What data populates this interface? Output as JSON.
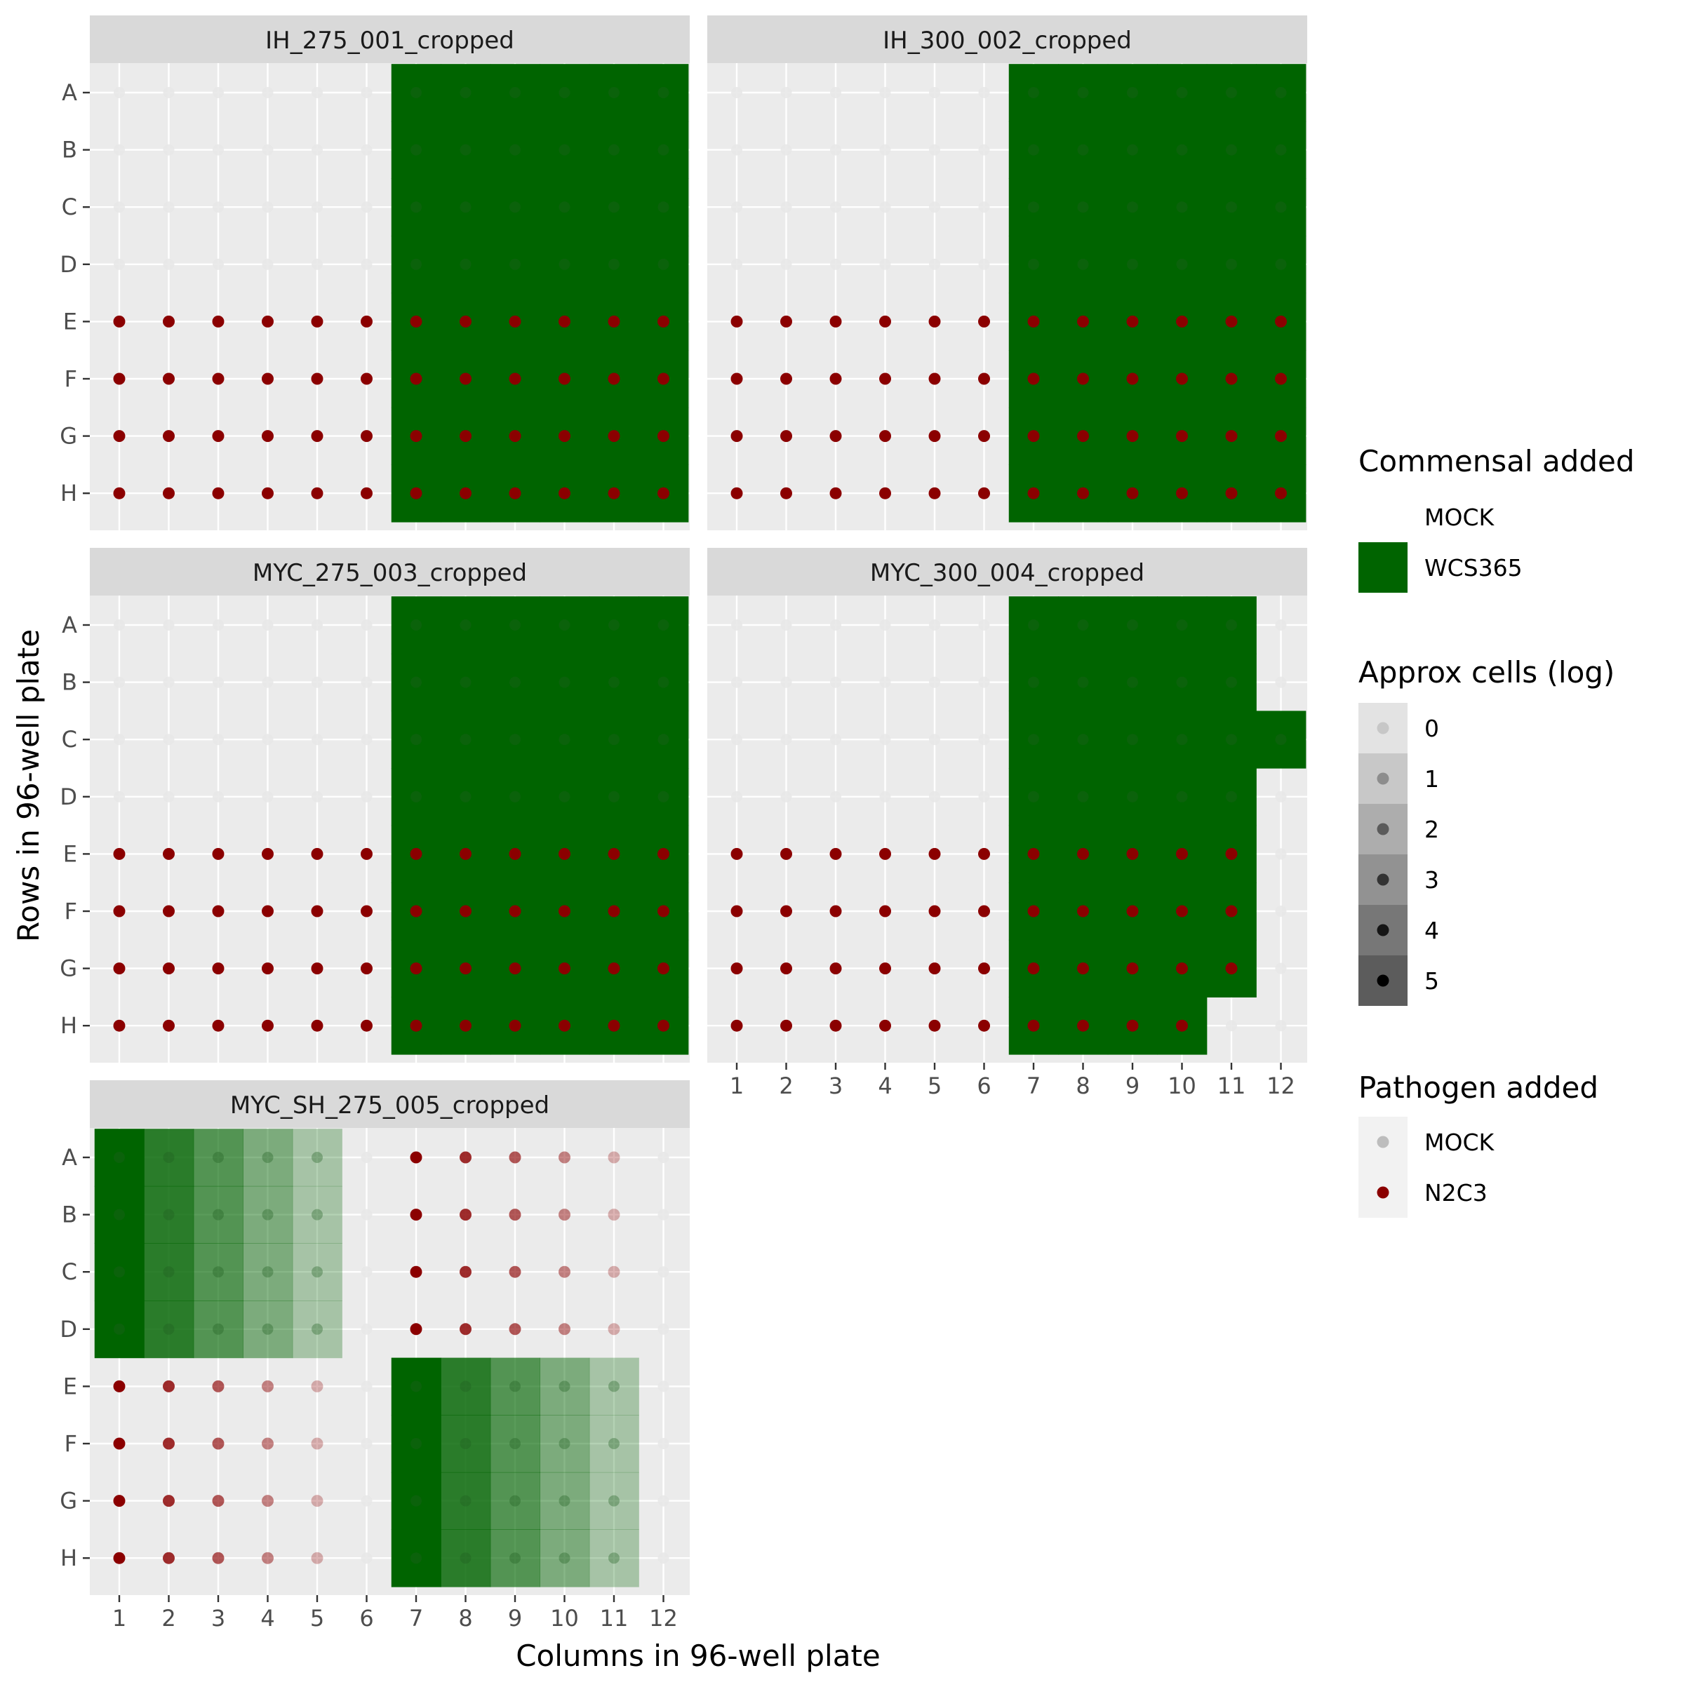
{
  "chart_data": {
    "type": "scatter",
    "xlabel": "Columns in 96-well plate",
    "ylabel": "Rows in 96-well plate",
    "x_ticks": [
      "1",
      "2",
      "3",
      "4",
      "5",
      "6",
      "7",
      "8",
      "9",
      "10",
      "11",
      "12"
    ],
    "y_ticks": [
      "A",
      "B",
      "C",
      "D",
      "E",
      "F",
      "G",
      "H"
    ],
    "colors": {
      "panel_bg": "#ebebeb",
      "grid": "#ffffff",
      "strip_bg": "#d9d9d9",
      "wcs365": "#006400",
      "n2c3": "#8b0000",
      "mock_point": "#bdbdbd"
    },
    "facets": [
      {
        "title": "IH_275_001_cropped",
        "commensal": [
          {
            "label": "WCS365",
            "rows": [
              "A",
              "B",
              "C",
              "D",
              "E",
              "F",
              "G",
              "H"
            ],
            "cols": [
              7,
              8,
              9,
              10,
              11,
              12
            ],
            "log_cells": 5
          }
        ],
        "pathogen": [
          {
            "label": "N2C3",
            "rows": [
              "E",
              "F",
              "G",
              "H"
            ],
            "cols": [
              1,
              2,
              3,
              4,
              5,
              6,
              7,
              8,
              9,
              10,
              11,
              12
            ],
            "log_cells": 5
          }
        ]
      },
      {
        "title": "IH_300_002_cropped",
        "commensal": [
          {
            "label": "WCS365",
            "rows": [
              "A",
              "B",
              "C",
              "D",
              "E",
              "F",
              "G",
              "H"
            ],
            "cols": [
              7,
              8,
              9,
              10,
              11,
              12
            ],
            "log_cells": 5
          }
        ],
        "pathogen": [
          {
            "label": "N2C3",
            "rows": [
              "E",
              "F",
              "G",
              "H"
            ],
            "cols": [
              1,
              2,
              3,
              4,
              5,
              6,
              7,
              8,
              9,
              10,
              11,
              12
            ],
            "log_cells": 5
          }
        ]
      },
      {
        "title": "MYC_275_003_cropped",
        "commensal": [
          {
            "label": "WCS365",
            "rows": [
              "A",
              "B",
              "C",
              "D",
              "E",
              "F",
              "G",
              "H"
            ],
            "cols": [
              7,
              8,
              9,
              10,
              11,
              12
            ],
            "log_cells": 5
          }
        ],
        "pathogen": [
          {
            "label": "N2C3",
            "rows": [
              "E",
              "F",
              "G",
              "H"
            ],
            "cols": [
              1,
              2,
              3,
              4,
              5,
              6,
              7,
              8,
              9,
              10,
              11,
              12
            ],
            "log_cells": 5
          }
        ]
      },
      {
        "title": "MYC_300_004_cropped",
        "commensal": [
          {
            "label": "WCS365",
            "rows": [
              "A",
              "B",
              "D",
              "E",
              "F",
              "G"
            ],
            "cols": [
              7,
              8,
              9,
              10,
              11
            ],
            "log_cells": 5
          },
          {
            "label": "WCS365",
            "rows": [
              "C"
            ],
            "cols": [
              7,
              8,
              9,
              10,
              11,
              12
            ],
            "log_cells": 5
          },
          {
            "label": "WCS365",
            "rows": [
              "H"
            ],
            "cols": [
              7,
              8,
              9,
              10
            ],
            "log_cells": 5
          }
        ],
        "pathogen": [
          {
            "label": "N2C3",
            "rows": [
              "E",
              "F",
              "G"
            ],
            "cols": [
              1,
              2,
              3,
              4,
              5,
              6,
              7,
              8,
              9,
              10,
              11
            ],
            "log_cells": 5
          },
          {
            "label": "N2C3",
            "rows": [
              "H"
            ],
            "cols": [
              1,
              2,
              3,
              4,
              5,
              6,
              7,
              8,
              9,
              10
            ],
            "log_cells": 5
          }
        ]
      },
      {
        "title": "MYC_SH_275_005_cropped",
        "commensal": [
          {
            "label": "WCS365",
            "rows": [
              "A",
              "B",
              "C",
              "D"
            ],
            "cols": [
              1
            ],
            "log_cells": 5
          },
          {
            "label": "WCS365",
            "rows": [
              "A",
              "B",
              "C",
              "D"
            ],
            "cols": [
              2
            ],
            "log_cells": 4
          },
          {
            "label": "WCS365",
            "rows": [
              "A",
              "B",
              "C",
              "D"
            ],
            "cols": [
              3
            ],
            "log_cells": 3
          },
          {
            "label": "WCS365",
            "rows": [
              "A",
              "B",
              "C",
              "D"
            ],
            "cols": [
              4
            ],
            "log_cells": 2
          },
          {
            "label": "WCS365",
            "rows": [
              "A",
              "B",
              "C",
              "D"
            ],
            "cols": [
              5
            ],
            "log_cells": 1
          },
          {
            "label": "WCS365",
            "rows": [
              "E",
              "F",
              "G",
              "H"
            ],
            "cols": [
              7
            ],
            "log_cells": 5
          },
          {
            "label": "WCS365",
            "rows": [
              "E",
              "F",
              "G",
              "H"
            ],
            "cols": [
              8
            ],
            "log_cells": 4
          },
          {
            "label": "WCS365",
            "rows": [
              "E",
              "F",
              "G",
              "H"
            ],
            "cols": [
              9
            ],
            "log_cells": 3
          },
          {
            "label": "WCS365",
            "rows": [
              "E",
              "F",
              "G",
              "H"
            ],
            "cols": [
              10
            ],
            "log_cells": 2
          },
          {
            "label": "WCS365",
            "rows": [
              "E",
              "F",
              "G",
              "H"
            ],
            "cols": [
              11
            ],
            "log_cells": 1
          }
        ],
        "pathogen": [
          {
            "label": "N2C3",
            "rows": [
              "A",
              "B",
              "C",
              "D"
            ],
            "cols": [
              7
            ],
            "log_cells": 5
          },
          {
            "label": "N2C3",
            "rows": [
              "A",
              "B",
              "C",
              "D"
            ],
            "cols": [
              8
            ],
            "log_cells": 4
          },
          {
            "label": "N2C3",
            "rows": [
              "A",
              "B",
              "C",
              "D"
            ],
            "cols": [
              9
            ],
            "log_cells": 3
          },
          {
            "label": "N2C3",
            "rows": [
              "A",
              "B",
              "C",
              "D"
            ],
            "cols": [
              10
            ],
            "log_cells": 2
          },
          {
            "label": "N2C3",
            "rows": [
              "A",
              "B",
              "C",
              "D"
            ],
            "cols": [
              11
            ],
            "log_cells": 1
          },
          {
            "label": "N2C3",
            "rows": [
              "E",
              "F",
              "G",
              "H"
            ],
            "cols": [
              1
            ],
            "log_cells": 5
          },
          {
            "label": "N2C3",
            "rows": [
              "E",
              "F",
              "G",
              "H"
            ],
            "cols": [
              2
            ],
            "log_cells": 4
          },
          {
            "label": "N2C3",
            "rows": [
              "E",
              "F",
              "G",
              "H"
            ],
            "cols": [
              3
            ],
            "log_cells": 3
          },
          {
            "label": "N2C3",
            "rows": [
              "E",
              "F",
              "G",
              "H"
            ],
            "cols": [
              4
            ],
            "log_cells": 2
          },
          {
            "label": "N2C3",
            "rows": [
              "E",
              "F",
              "G",
              "H"
            ],
            "cols": [
              5
            ],
            "log_cells": 1
          }
        ]
      }
    ],
    "legends": {
      "commensal": {
        "title": "Commensal added",
        "items": [
          {
            "label": "MOCK",
            "color": "#ffffff"
          },
          {
            "label": "WCS365",
            "color": "#006400"
          }
        ]
      },
      "alpha": {
        "title": "Approx cells (log)",
        "items": [
          "0",
          "1",
          "2",
          "3",
          "4",
          "5"
        ]
      },
      "pathogen": {
        "title": "Pathogen added",
        "items": [
          {
            "label": "MOCK",
            "color": "#bdbdbd"
          },
          {
            "label": "N2C3",
            "color": "#8b0000"
          }
        ]
      }
    }
  }
}
